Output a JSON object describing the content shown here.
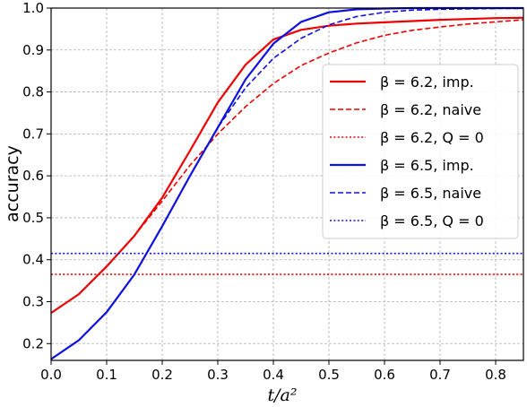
{
  "chart_data": {
    "type": "line",
    "xlabel": "t/a²",
    "ylabel": "accuracy",
    "xlim": [
      0.0,
      0.85
    ],
    "ylim": [
      0.16,
      1.0
    ],
    "xticks": [
      0.0,
      0.1,
      0.2,
      0.3,
      0.4,
      0.5,
      0.6,
      0.7,
      0.8
    ],
    "yticks": [
      0.2,
      0.3,
      0.4,
      0.5,
      0.6,
      0.7,
      0.8,
      0.9,
      1.0
    ],
    "xtick_labels": [
      "0.0",
      "0.1",
      "0.2",
      "0.3",
      "0.4",
      "0.5",
      "0.6",
      "0.7",
      "0.8"
    ],
    "ytick_labels": [
      "0.2",
      "0.3",
      "0.4",
      "0.5",
      "0.6",
      "0.7",
      "0.8",
      "0.9",
      "1.0"
    ],
    "grid": true,
    "legend_position": "center-right",
    "series": [
      {
        "name": "β = 6.2, imp.",
        "color": "#ee0000",
        "style": "solid",
        "x": [
          0.0,
          0.05,
          0.1,
          0.15,
          0.2,
          0.25,
          0.3,
          0.35,
          0.4,
          0.45,
          0.5,
          0.55,
          0.6,
          0.65,
          0.7,
          0.75,
          0.8,
          0.85
        ],
        "y": [
          0.273,
          0.318,
          0.384,
          0.457,
          0.548,
          0.66,
          0.775,
          0.865,
          0.925,
          0.948,
          0.958,
          0.963,
          0.966,
          0.969,
          0.972,
          0.974,
          0.976,
          0.977
        ]
      },
      {
        "name": "β = 6.2, naive",
        "color": "#ee0000",
        "style": "dashed",
        "x": [
          0.0,
          0.05,
          0.1,
          0.15,
          0.2,
          0.25,
          0.3,
          0.35,
          0.4,
          0.45,
          0.5,
          0.55,
          0.6,
          0.65,
          0.7,
          0.75,
          0.8,
          0.85
        ],
        "y": [
          0.273,
          0.318,
          0.384,
          0.457,
          0.54,
          0.625,
          0.7,
          0.765,
          0.82,
          0.863,
          0.893,
          0.917,
          0.935,
          0.947,
          0.955,
          0.962,
          0.967,
          0.972
        ]
      },
      {
        "name": "β = 6.2, Q = 0",
        "color": "#ee0000",
        "style": "dotted",
        "x": [
          0.0,
          0.85
        ],
        "y": [
          0.365,
          0.365
        ]
      },
      {
        "name": "β = 6.5, imp.",
        "color": "#1010dd",
        "style": "solid",
        "x": [
          0.0,
          0.05,
          0.1,
          0.15,
          0.2,
          0.25,
          0.3,
          0.35,
          0.4,
          0.45,
          0.5,
          0.55,
          0.6,
          0.65,
          0.7,
          0.75,
          0.8,
          0.85
        ],
        "y": [
          0.163,
          0.208,
          0.275,
          0.365,
          0.48,
          0.6,
          0.715,
          0.83,
          0.915,
          0.967,
          0.99,
          0.997,
          0.999,
          1.0,
          1.0,
          1.0,
          1.0,
          1.0
        ]
      },
      {
        "name": "β = 6.5, naive",
        "color": "#1010dd",
        "style": "dashed",
        "x": [
          0.0,
          0.05,
          0.1,
          0.15,
          0.2,
          0.25,
          0.3,
          0.35,
          0.4,
          0.45,
          0.5,
          0.55,
          0.6,
          0.65,
          0.7,
          0.75,
          0.8,
          0.85
        ],
        "y": [
          0.163,
          0.208,
          0.275,
          0.365,
          0.48,
          0.6,
          0.715,
          0.81,
          0.88,
          0.928,
          0.96,
          0.98,
          0.99,
          0.995,
          0.997,
          0.998,
          0.999,
          0.999
        ]
      },
      {
        "name": "β = 6.5, Q = 0",
        "color": "#1010dd",
        "style": "dotted",
        "x": [
          0.0,
          0.85
        ],
        "y": [
          0.415,
          0.415
        ]
      }
    ]
  }
}
